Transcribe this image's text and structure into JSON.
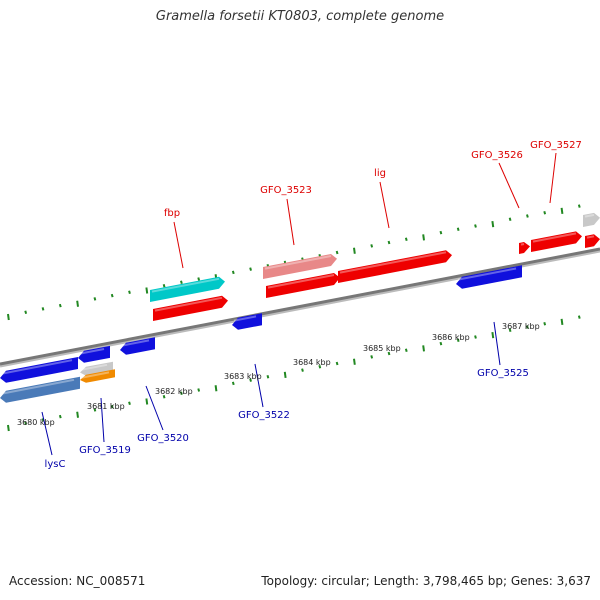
{
  "title": "Gramella forsetii KT0803, complete genome",
  "footer": {
    "accession": "Accession: NC_008571",
    "summary": "Topology: circular; Length: 3,798,465 bp; Genes: 3,637"
  },
  "colors": {
    "forward_gene": "#ee0000",
    "reverse_gene": "#1010dd",
    "highlight_forward": "#00c8c8",
    "pseudo_forward": "#e88888",
    "reverse_alt": "#4a7ab8",
    "reverse_orange": "#f08a00",
    "grey_feature": "#c8c8c8",
    "tick": "#228822",
    "backbone": "#777777",
    "forward_label": "#dd0000",
    "reverse_label": "#0000aa"
  },
  "scale": {
    "unit": "kbp",
    "labels": [
      "3680 kbp",
      "3681 kbp",
      "3682 kbp",
      "3683 kbp",
      "3684 kbp",
      "3685 kbp",
      "3686 kbp",
      "3687 kbp"
    ]
  },
  "forward_genes": [
    {
      "label": "fbp"
    },
    {
      "label": "GFO_3523"
    },
    {
      "label": "lig"
    },
    {
      "label": "GFO_3526"
    },
    {
      "label": "GFO_3527"
    }
  ],
  "reverse_genes": [
    {
      "label": "lysC"
    },
    {
      "label": "GFO_3519"
    },
    {
      "label": "GFO_3520"
    },
    {
      "label": "GFO_3522"
    },
    {
      "label": "GFO_3525"
    }
  ]
}
